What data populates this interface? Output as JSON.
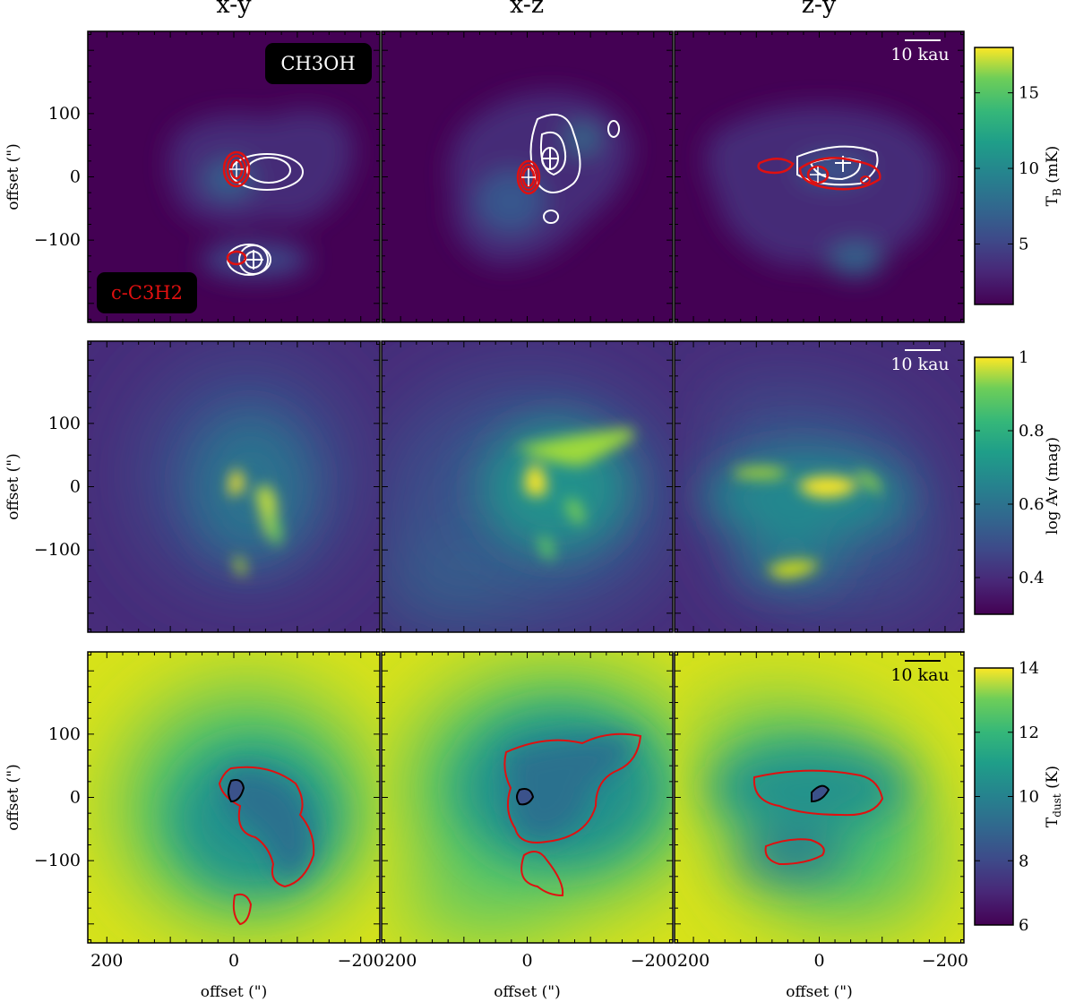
{
  "figure": {
    "columns": [
      "x-y",
      "x-z",
      "z-y"
    ],
    "xlabel": "offset (\")",
    "ylabel": "offset (\")",
    "scalebar_label": "10 kau"
  },
  "chart_data": [
    {
      "type": "heatmap",
      "row": "CH3OH brightness temperature",
      "colorbar": {
        "label": "T_B (mK)",
        "label_main": "T",
        "label_sub": "B",
        "label_unit": " (mK)",
        "range": [
          1,
          18
        ],
        "ticks": [
          5,
          10,
          15
        ]
      },
      "annotations": {
        "species_a": "CH3OH",
        "species_b": "c-C3H2"
      },
      "contours": {
        "CH3OH": "#ffffff",
        "c-C3H2": "#e01010"
      },
      "colormap": "viridis",
      "xlim": [
        230,
        -230
      ],
      "ylim": [
        -230,
        230
      ],
      "xticks": [
        200,
        0,
        -200
      ],
      "yticks": [
        100,
        0,
        -100
      ]
    },
    {
      "type": "heatmap",
      "row": "visual extinction",
      "colorbar": {
        "label": "log Av (mag)",
        "label_main": "log Av (mag)",
        "label_sub": "",
        "label_unit": "",
        "range": [
          0.3,
          1.0
        ],
        "ticks": [
          0.4,
          0.6,
          0.8,
          1.0
        ]
      },
      "colormap": "viridis",
      "xlim": [
        230,
        -230
      ],
      "ylim": [
        -230,
        230
      ],
      "xticks": [
        200,
        0,
        -200
      ],
      "yticks": [
        100,
        0,
        -100
      ]
    },
    {
      "type": "heatmap",
      "row": "dust temperature",
      "colorbar": {
        "label": "T_dust (K)",
        "label_main": "T",
        "label_sub": "dust",
        "label_unit": " (K)",
        "range": [
          6,
          14
        ],
        "ticks": [
          6,
          8,
          10,
          12,
          14
        ]
      },
      "colormap": "viridis",
      "contours": {
        "outer": "#e01010",
        "inner": "#000000"
      },
      "xlim": [
        230,
        -230
      ],
      "ylim": [
        -230,
        230
      ],
      "xticks": [
        200,
        0,
        -200
      ],
      "yticks": [
        100,
        0,
        -100
      ]
    }
  ]
}
